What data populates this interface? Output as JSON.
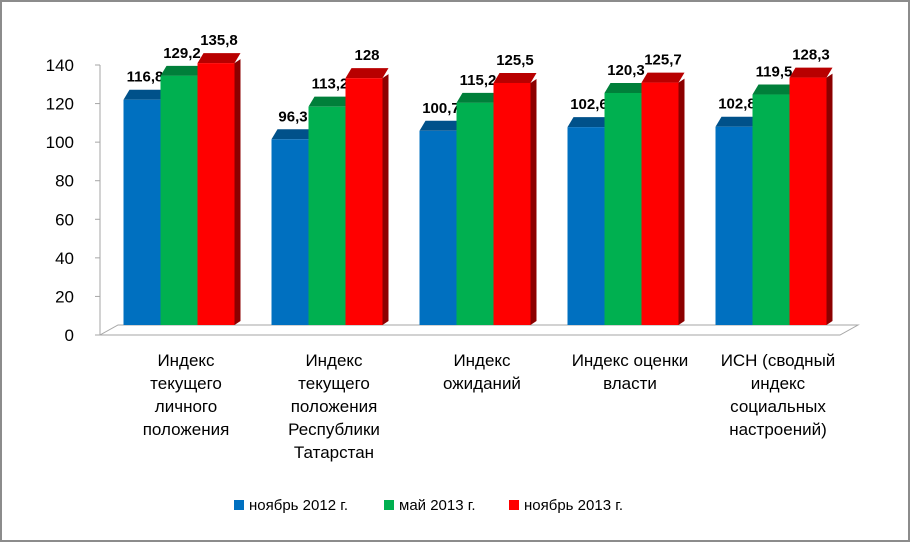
{
  "chart_data": {
    "type": "bar",
    "categories": [
      [
        "Индекс",
        "текущего",
        "личного",
        "положения"
      ],
      [
        "Индекс",
        "текущего",
        "положения",
        "Республики",
        "Татарстан"
      ],
      [
        "Индекс",
        "ожиданий"
      ],
      [
        "Индекс оценки",
        "власти"
      ],
      [
        "ИСН (сводный",
        "индекс",
        "социальных",
        "настроений)"
      ]
    ],
    "series": [
      {
        "name": "ноябрь 2012 г.",
        "color": "#0070c0",
        "values": [
          116.8,
          96.3,
          100.7,
          102.6,
          102.8
        ],
        "labels": [
          "116,8",
          "96,3",
          "100,7",
          "102,6",
          "102,8"
        ]
      },
      {
        "name": "май 2013 г.",
        "color": "#00b050",
        "values": [
          129.2,
          113.2,
          115.2,
          120.3,
          119.5
        ],
        "labels": [
          "129,2",
          "113,2",
          "115,2",
          "120,3",
          "119,5"
        ]
      },
      {
        "name": "ноябрь 2013 г.",
        "color": "#ff0000",
        "values": [
          135.8,
          128,
          125.5,
          125.7,
          128.3
        ],
        "labels": [
          "135,8",
          "128",
          "125,5",
          "125,7",
          "128,3"
        ]
      }
    ],
    "ylim": [
      0,
      140
    ],
    "yticks": [
      "0",
      "20",
      "40",
      "60",
      "80",
      "100",
      "120",
      "140"
    ],
    "grid": false,
    "legend_position": "bottom",
    "style": "3d-clustered-column"
  }
}
